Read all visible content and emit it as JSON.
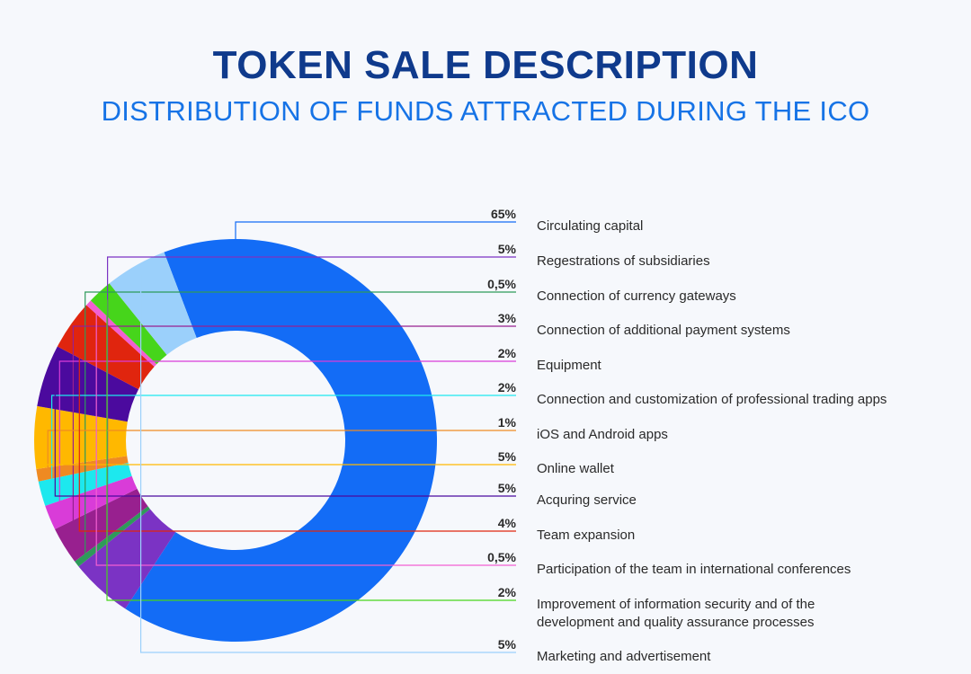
{
  "title": "TOKEN SALE DESCRIPTION",
  "subtitle": "DISTRIBUTION OF FUNDS ATTRACTED DURING THE ICO",
  "chart_data": {
    "type": "pie",
    "variant": "donut",
    "title": "TOKEN SALE DESCRIPTION",
    "subtitle": "DISTRIBUTION OF FUNDS ATTRACTED DURING THE ICO",
    "legend_position": "right",
    "slices": [
      {
        "label": "Circulating capital",
        "value": 65,
        "value_text": "65%",
        "color": "#136cf6"
      },
      {
        "label": "Regestrations of subsidiaries",
        "value": 5,
        "value_text": "5%",
        "color": "#7b33c4"
      },
      {
        "label": "Connection of currency gateways",
        "value": 0.5,
        "value_text": "0,5%",
        "color": "#2e9a5a"
      },
      {
        "label": "Connection of additional payment systems",
        "value": 3,
        "value_text": "3%",
        "color": "#98208f"
      },
      {
        "label": "Equipment",
        "value": 2,
        "value_text": "2%",
        "color": "#d93cd8"
      },
      {
        "label": "Connection and customization of professional trading apps",
        "value": 2,
        "value_text": "2%",
        "color": "#1de8ee"
      },
      {
        "label": "iOS and Android apps",
        "value": 1,
        "value_text": "1%",
        "color": "#ef8a22"
      },
      {
        "label": "Online wallet",
        "value": 5,
        "value_text": "5%",
        "color": "#ffb800"
      },
      {
        "label": "Acquring service",
        "value": 5,
        "value_text": "5%",
        "color": "#4b0a9e"
      },
      {
        "label": "Team expansion",
        "value": 4,
        "value_text": "4%",
        "color": "#e0250e"
      },
      {
        "label": "Participation of the team in international conferences",
        "value": 0.5,
        "value_text": "0,5%",
        "color": "#f25fd2"
      },
      {
        "label": "Improvement of information security and of the development and quality assurance processes",
        "label_lines": [
          "Improvement of information security and of the",
          "development and quality assurance processes"
        ],
        "value": 2,
        "value_text": "2%",
        "color": "#46d51b"
      },
      {
        "label": "Marketing and advertisement",
        "value": 5,
        "value_text": "5%",
        "color": "#9bd0fb"
      }
    ]
  }
}
